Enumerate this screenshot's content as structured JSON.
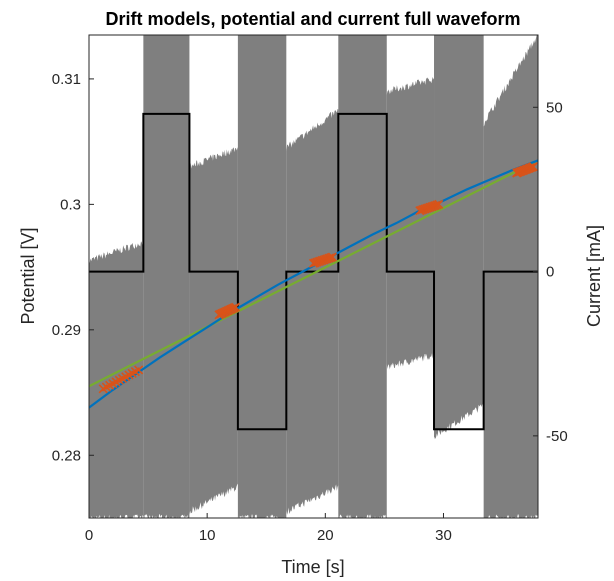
{
  "chart_data": {
    "type": "line",
    "title": "Drift models, potential and current full waveform",
    "xlabel": "Time [s]",
    "ylabel_left": "Potential [V]",
    "ylabel_right": "Current [mA]",
    "xlim": [
      0,
      38
    ],
    "ylim_left": [
      0.275,
      0.3135
    ],
    "ylim_right": [
      -75,
      72
    ],
    "x_ticks": [
      0,
      10,
      20,
      30
    ],
    "y_ticks_left": [
      0.28,
      0.29,
      0.3,
      0.31
    ],
    "y_ticks_left_labels": [
      "0.28",
      "0.29",
      "0.3",
      "0.31"
    ],
    "y_ticks_right": [
      -50,
      0,
      50
    ],
    "y_ticks_right_labels": [
      "-50",
      "0",
      "50"
    ],
    "grid": false,
    "colors": {
      "potential_band": "#7f7f7f",
      "potential_top": "#8c8c8c",
      "current": "#000000",
      "drift_model_1": "#0072BD",
      "drift_model_2": "#77AC30",
      "fit_points": "#D95319"
    },
    "series": [
      {
        "axis": "right",
        "style": "step",
        "x": [
          0,
          4.6,
          4.6,
          8.5,
          8.5,
          12.6,
          12.6,
          16.7,
          16.7,
          21.1,
          21.1,
          25.2,
          25.2,
          29.2,
          29.2,
          33.4,
          33.4,
          38
        ],
        "values": [
          0,
          0,
          48,
          48,
          0,
          0,
          -48,
          -48,
          0,
          0,
          48,
          48,
          0,
          0,
          -48,
          -48,
          0,
          0
        ]
      },
      {
        "axis": "left",
        "style": "line",
        "x": [
          0,
          2,
          4,
          6,
          8,
          10,
          12,
          14,
          16,
          18,
          20,
          22,
          24,
          26,
          28,
          30,
          32,
          34,
          36,
          38
        ],
        "values": [
          0.2838,
          0.2852,
          0.2865,
          0.2878,
          0.289,
          0.2902,
          0.2914,
          0.2925,
          0.2936,
          0.2946,
          0.2956,
          0.2966,
          0.2976,
          0.2985,
          0.2995,
          0.3003,
          0.3012,
          0.302,
          0.3028,
          0.3035
        ]
      },
      {
        "axis": "left",
        "style": "line",
        "x": [
          0,
          38
        ],
        "values": [
          0.2855,
          0.3035
        ]
      }
    ],
    "potential_waveform": {
      "axis": "left",
      "segments": [
        {
          "x": [
            0,
            4.6
          ],
          "state": "rest",
          "top": [
            0.2955,
            0.297
          ],
          "bottom": [
            0.275,
            0.275
          ]
        },
        {
          "x": [
            4.6,
            8.5
          ],
          "state": "oscillating",
          "top": [
            0.3135,
            0.3135
          ],
          "bottom": [
            0.275,
            0.275
          ]
        },
        {
          "x": [
            8.5,
            12.6
          ],
          "state": "rest",
          "top": [
            0.303,
            0.3045
          ],
          "bottom": [
            0.2755,
            0.2775
          ]
        },
        {
          "x": [
            12.6,
            16.7
          ],
          "state": "oscillating",
          "top": [
            0.3135,
            0.3135
          ],
          "bottom": [
            0.275,
            0.275
          ]
        },
        {
          "x": [
            16.7,
            21.1
          ],
          "state": "rest",
          "top": [
            0.3045,
            0.3075
          ],
          "bottom": [
            0.2755,
            0.2775
          ]
        },
        {
          "x": [
            21.1,
            25.2
          ],
          "state": "oscillating",
          "top": [
            0.3135,
            0.3135
          ],
          "bottom": [
            0.275,
            0.275
          ]
        },
        {
          "x": [
            25.2,
            29.2
          ],
          "state": "rest",
          "top": [
            0.309,
            0.31
          ],
          "bottom": [
            0.287,
            0.288
          ]
        },
        {
          "x": [
            29.2,
            33.4
          ],
          "state": "oscillating",
          "top": [
            0.3135,
            0.3135
          ],
          "bottom": [
            0.2815,
            0.284
          ]
        },
        {
          "x": [
            33.4,
            38
          ],
          "state": "rest",
          "top": [
            0.3065,
            0.3135
          ],
          "bottom": [
            0.275,
            0.275
          ]
        }
      ]
    },
    "fit_points": {
      "axis": "left",
      "groups": [
        {
          "x": [
            1.2,
            4.2
          ],
          "values": [
            0.2853,
            0.2868
          ]
        },
        {
          "x": [
            11.0,
            12.4
          ],
          "values": [
            0.2912,
            0.2918
          ]
        },
        {
          "x": [
            19.0,
            20.6
          ],
          "values": [
            0.2953,
            0.2958
          ]
        },
        {
          "x": [
            28.0,
            29.6
          ],
          "values": [
            0.2995,
            0.3
          ]
        },
        {
          "x": [
            36.2,
            37.6
          ],
          "values": [
            0.3025,
            0.303
          ]
        }
      ]
    }
  }
}
